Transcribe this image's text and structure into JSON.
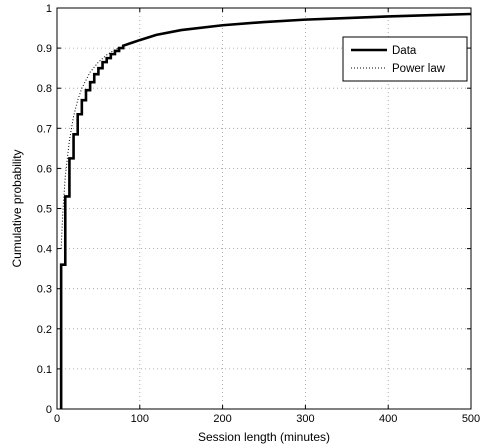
{
  "chart_data": {
    "type": "line",
    "title": "",
    "xlabel": "Session length (minutes)",
    "ylabel": "Cumulative probability",
    "xlim": [
      0,
      500
    ],
    "ylim": [
      0,
      1
    ],
    "xticks": [
      0,
      100,
      200,
      300,
      400,
      500
    ],
    "yticks": [
      0,
      0.1,
      0.2,
      0.3,
      0.4,
      0.5,
      0.6,
      0.7,
      0.8,
      0.9,
      1
    ],
    "xtick_labels": [
      "0",
      "100",
      "200",
      "300",
      "400",
      "500"
    ],
    "ytick_labels": [
      "0",
      "0.1",
      "0.2",
      "0.3",
      "0.4",
      "0.5",
      "0.6",
      "0.7",
      "0.8",
      "0.9",
      "1"
    ],
    "grid": true,
    "legend_position": "top-right",
    "series": [
      {
        "name": "Data",
        "style": "solid-step",
        "color": "#000000",
        "x": [
          5,
          5,
          10,
          10,
          15,
          15,
          20,
          20,
          25,
          25,
          30,
          30,
          35,
          35,
          40,
          40,
          45,
          45,
          50,
          50,
          55,
          55,
          60,
          60,
          65,
          65,
          70,
          70,
          75,
          75,
          80,
          80,
          90,
          100,
          120,
          150,
          200,
          250,
          300,
          350,
          400,
          450,
          500
        ],
        "y": [
          0,
          0.36,
          0.36,
          0.53,
          0.53,
          0.625,
          0.625,
          0.685,
          0.685,
          0.735,
          0.735,
          0.77,
          0.77,
          0.795,
          0.795,
          0.815,
          0.815,
          0.835,
          0.835,
          0.85,
          0.85,
          0.865,
          0.865,
          0.875,
          0.875,
          0.885,
          0.885,
          0.893,
          0.893,
          0.9,
          0.9,
          0.906,
          0.913,
          0.92,
          0.933,
          0.945,
          0.957,
          0.965,
          0.971,
          0.975,
          0.979,
          0.982,
          0.985
        ]
      },
      {
        "name": "Power law",
        "style": "dotted",
        "color": "#000000",
        "x": [
          5,
          7,
          10,
          15,
          20,
          25,
          30,
          40,
          50,
          60,
          70,
          80,
          100,
          120,
          150,
          200,
          250,
          300,
          350,
          400,
          450,
          500
        ],
        "y": [
          0.4,
          0.49,
          0.58,
          0.67,
          0.73,
          0.77,
          0.8,
          0.84,
          0.865,
          0.883,
          0.896,
          0.906,
          0.92,
          0.932,
          0.944,
          0.957,
          0.965,
          0.971,
          0.976,
          0.98,
          0.983,
          0.986
        ]
      }
    ]
  }
}
